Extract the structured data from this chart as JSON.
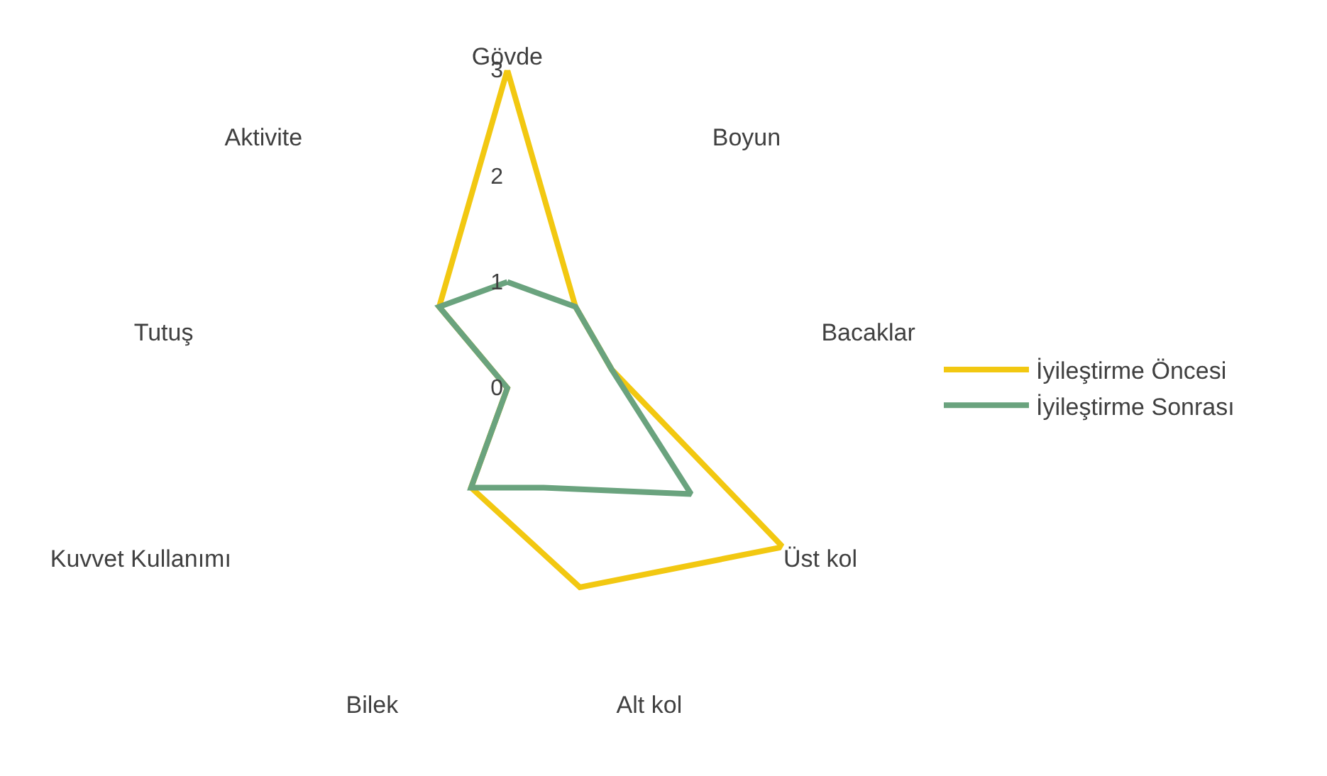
{
  "chart_data": {
    "type": "radar",
    "categories": [
      "Gövde",
      "Boyun",
      "Bacaklar",
      "Üst kol",
      "Alt kol",
      "Bilek",
      "Kuvvet Kullanımı",
      "Tutuş",
      "Aktivite"
    ],
    "series": [
      {
        "name": "İyileştirme Öncesi",
        "color": "#f2c811",
        "values": [
          3,
          1,
          1,
          3,
          2,
          1,
          0,
          0,
          1
        ]
      },
      {
        "name": "İyileştirme Sonrası",
        "color": "#6aa37e",
        "values": [
          1,
          1,
          1,
          2,
          1,
          1,
          0,
          0,
          1
        ]
      }
    ],
    "ylim": [
      0,
      3
    ],
    "yticks": [
      0,
      1,
      2,
      3
    ],
    "grid": false,
    "legend": "right",
    "marker": "none",
    "line_style": "solid"
  }
}
